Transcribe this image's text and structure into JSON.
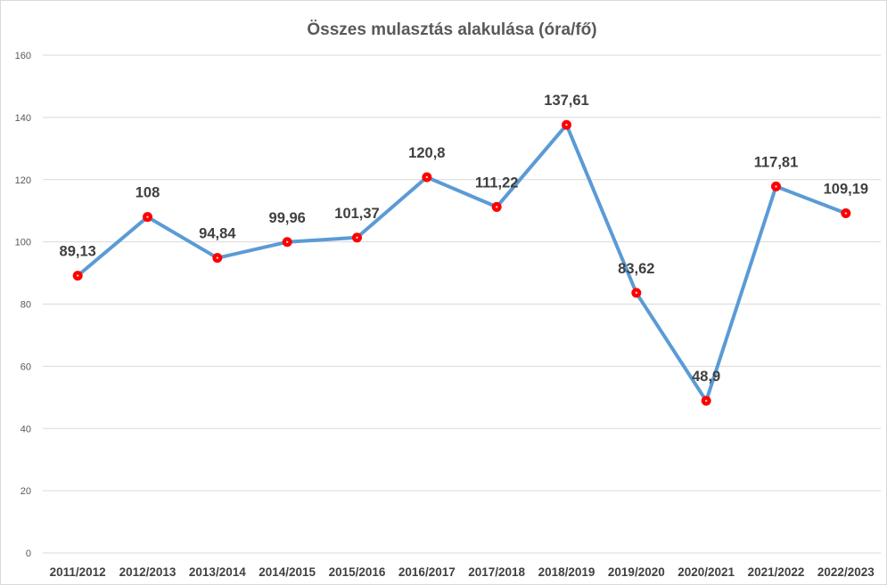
{
  "chart_data": {
    "type": "line",
    "title": "Összes mulasztás alakulása (óra/fő)",
    "categories": [
      "2011/2012",
      "2012/2013",
      "2013/2014",
      "2014/2015",
      "2015/2016",
      "2016/2017",
      "2017/2018",
      "2018/2019",
      "2019/2020",
      "2020/2021",
      "2021/2022",
      "2022/2023"
    ],
    "series": [
      {
        "values": [
          89.13,
          108,
          94.84,
          99.96,
          101.37,
          120.8,
          111.22,
          137.61,
          83.62,
          48.9,
          117.81,
          109.19
        ],
        "labels": [
          "89,13",
          "108",
          "94,84",
          "99,96",
          "101,37",
          "120,8",
          "111,22",
          "137,61",
          "83,62",
          "48,9",
          "117,81",
          "109,19"
        ],
        "line_color": "#5b9bd5",
        "marker_color": "#ff0000"
      }
    ],
    "y_ticks": [
      "0",
      "20",
      "40",
      "60",
      "80",
      "100",
      "120",
      "140",
      "160"
    ],
    "ylim": [
      0,
      160
    ],
    "grid": "horizontal",
    "legend": "none",
    "xlabel": "",
    "ylabel": ""
  }
}
